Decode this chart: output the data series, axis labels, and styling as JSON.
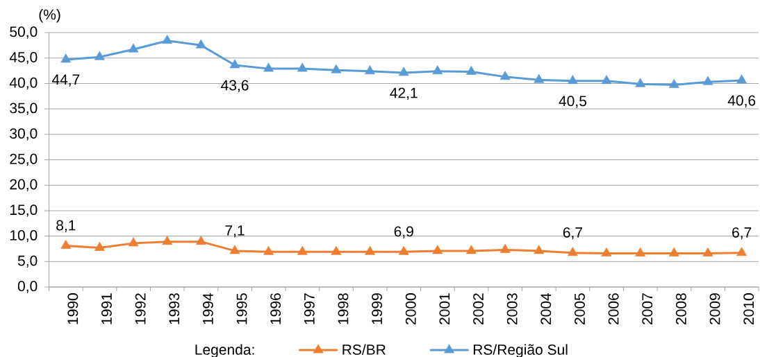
{
  "chart_data": {
    "type": "line",
    "ylabel": "(%)",
    "legend_title": "Legenda:",
    "categories": [
      "1990",
      "1991",
      "1992",
      "1993",
      "1994",
      "1995",
      "1996",
      "1997",
      "1998",
      "1999",
      "2000",
      "2001",
      "2002",
      "2003",
      "2004",
      "2005",
      "2006",
      "2007",
      "2008",
      "2009",
      "2010"
    ],
    "series": [
      {
        "name": "RS/BR",
        "color": "#ed7d31",
        "values": [
          8.1,
          7.7,
          8.6,
          8.9,
          8.9,
          7.1,
          6.9,
          6.9,
          6.9,
          6.9,
          6.9,
          7.1,
          7.1,
          7.3,
          7.1,
          6.7,
          6.6,
          6.6,
          6.6,
          6.6,
          6.7
        ],
        "value_labels": [
          "8,1",
          null,
          null,
          null,
          null,
          "7,1",
          null,
          null,
          null,
          null,
          "6,9",
          null,
          null,
          null,
          null,
          "6,7",
          null,
          null,
          null,
          null,
          "6,7"
        ]
      },
      {
        "name": "RS/Região Sul",
        "color": "#5b9bd5",
        "values": [
          44.7,
          45.2,
          46.7,
          48.4,
          47.5,
          43.6,
          42.9,
          42.9,
          42.6,
          42.4,
          42.1,
          42.4,
          42.3,
          41.3,
          40.7,
          40.5,
          40.5,
          39.9,
          39.7,
          40.3,
          40.6
        ],
        "value_labels": [
          "44,7",
          null,
          null,
          null,
          null,
          "43,6",
          null,
          null,
          null,
          null,
          "42,1",
          null,
          null,
          null,
          null,
          "40,5",
          null,
          null,
          null,
          null,
          "40,6"
        ]
      }
    ],
    "ylim": [
      0,
      50
    ],
    "yticks": [
      {
        "value": 0,
        "label": "0,0"
      },
      {
        "value": 5,
        "label": "5,0"
      },
      {
        "value": 10,
        "label": "10,0"
      },
      {
        "value": 15,
        "label": "15,0"
      },
      {
        "value": 20,
        "label": "20,0"
      },
      {
        "value": 25,
        "label": "25,0"
      },
      {
        "value": 30,
        "label": "30,0"
      },
      {
        "value": 35,
        "label": "35,0"
      },
      {
        "value": 40,
        "label": "40,0"
      },
      {
        "value": 45,
        "label": "45,0"
      },
      {
        "value": 50,
        "label": "50,0"
      }
    ],
    "grid": "y",
    "legend": "bottom",
    "marker": "triangle",
    "line_style": "solid"
  }
}
